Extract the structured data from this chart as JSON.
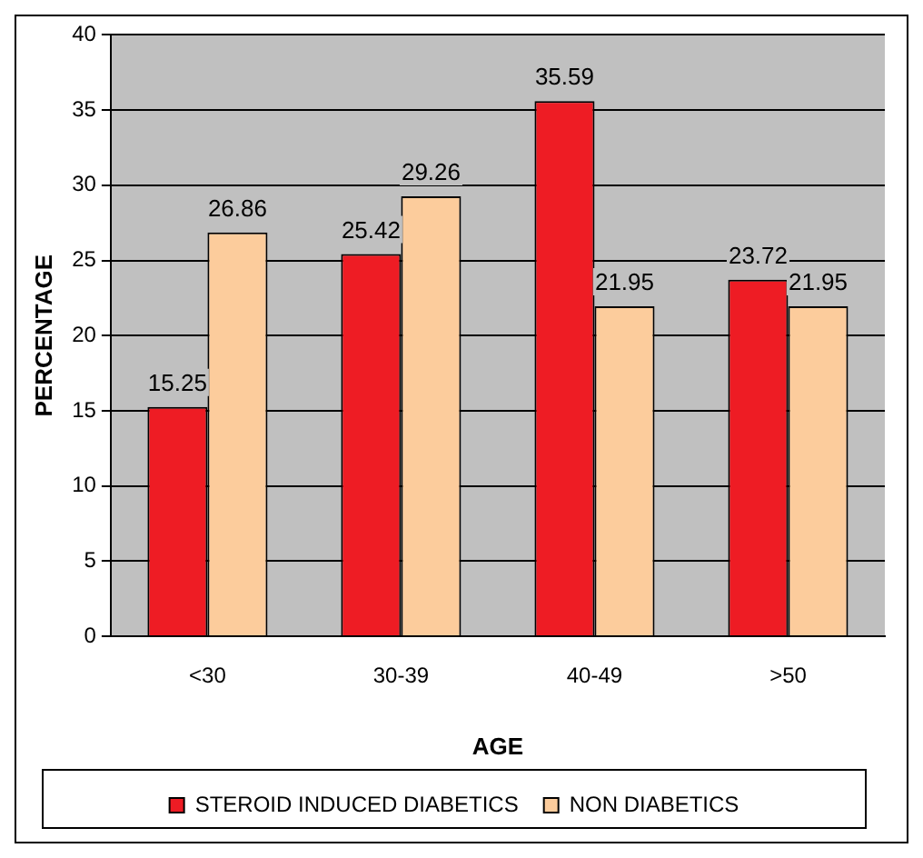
{
  "chart_data": {
    "type": "bar",
    "xlabel": "AGE",
    "ylabel": "PERCENTAGE",
    "categories": [
      "<30",
      "30-39",
      "40-49",
      ">50"
    ],
    "series": [
      {
        "name": "STEROID INDUCED DIABETICS",
        "color": "#ee1c24",
        "values": [
          15.25,
          25.42,
          35.59,
          23.72
        ]
      },
      {
        "name": "NON DIABETICS",
        "color": "#fccc9c",
        "values": [
          26.86,
          29.26,
          21.95,
          21.95
        ]
      }
    ],
    "ylim": [
      0,
      40
    ],
    "yticks": [
      0,
      5,
      10,
      15,
      20,
      25,
      30,
      35,
      40
    ],
    "grid": "y",
    "legend": "bottom",
    "data_labels": true
  }
}
